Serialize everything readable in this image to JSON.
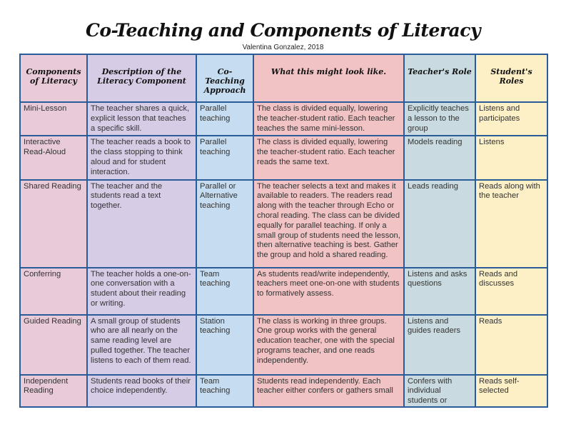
{
  "title": "Co-Teaching and Components of Literacy",
  "subtitle": "Valentina Gonzalez, 2018",
  "colors": {
    "border": "#2a5c9a",
    "components": "#e9cad8",
    "description": "#d6cce6",
    "approach": "#c6dcf1",
    "look_like": "#f1c3c4",
    "teacher_role": "#c9dbe0",
    "student_roles": "#fdf0c6"
  },
  "headers": [
    "Components of Literacy",
    "Description of the Literacy Component",
    "Co-Teaching Approach",
    "What this might look like.",
    "Teacher's Role",
    "Student's Roles"
  ],
  "rows": [
    [
      "Mini-Lesson",
      "The teacher shares a quick, explicit lesson that teaches a specific skill.",
      "Parallel teaching",
      "The class is divided equally, lowering the teacher-student ratio. Each teacher teaches the same mini-lesson.",
      "Explicitly teaches a lesson to the group",
      "Listens and participates"
    ],
    [
      "Interactive Read-Aloud",
      "The teacher reads a book to the class stopping to think aloud and for student interaction.",
      "Parallel teaching",
      "The class is divided equally, lowering the teacher-student ratio. Each teacher reads the same text.",
      "Models reading",
      "Listens"
    ],
    [
      "Shared Reading",
      "The teacher and the students read a text together.",
      "Parallel or Alternative teaching",
      "The teacher selects a text and makes it available to readers. The readers read along with the teacher through Echo or choral reading. The class can be divided equally for parallel teaching. If only a small group of students need the lesson, then alternative teaching is best. Gather the group and hold a shared reading.",
      "Leads reading",
      "Reads along with the teacher"
    ],
    [
      "Conferring",
      "The teacher holds a one-on-one conversation with a student about their reading or writing.",
      "Team teaching",
      "As students read/write independently, teachers meet one-on-one with students to formatively assess.",
      "Listens and asks questions",
      "Reads and discusses"
    ],
    [
      "Guided Reading",
      "A small group of students who are all nearly on the same reading level are pulled together. The teacher listens to each of them read.",
      "Station teaching",
      "The class is working in three groups. One group works with the general education teacher, one with the special programs teacher, and one reads independently.",
      "Listens and guides readers",
      "Reads"
    ],
    [
      "Independent Reading",
      "Students read books of their choice independently.",
      "Team teaching",
      "Students read independently. Each teacher either confers or gathers small",
      "Confers with individual students or",
      "Reads self-selected"
    ]
  ]
}
